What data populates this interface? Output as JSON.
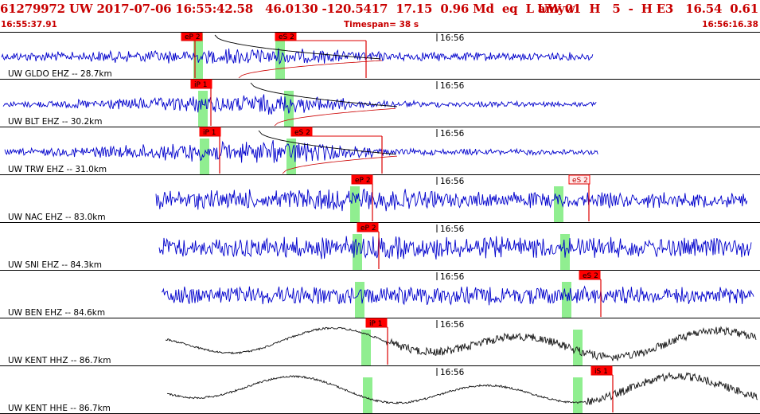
{
  "header": {
    "left": "61279972 UW 2017-07-06 16:55:42.58   46.0130 -120.5417  17.15  0.96 Md  eq  L amyw",
    "right": "UW 01  H   5  -  H E3   16.54  0.61"
  },
  "subheader": {
    "start_time": "16:55:37.91",
    "timespan": "Timespan=  38 s",
    "end_time": "16:56:16.38"
  },
  "colors": {
    "header_text": "#c80000",
    "trace_blue": "#0000cc",
    "trace_black": "#111111",
    "pick_box": "#ff0000",
    "pick_line": "#dd0000",
    "window_band": "#90ee90",
    "panel_border": "#000000"
  },
  "traces": [
    {
      "label": "UW GLDO EHZ -- 28.7km",
      "tick": "16:56",
      "color": "blue",
      "style": "noise",
      "picks": [
        {
          "label": "eP 2",
          "style": "filled"
        },
        {
          "label": "eS 2",
          "style": "filled"
        }
      ]
    },
    {
      "label": "UW BLT EHZ -- 30.2km",
      "tick": "16:56",
      "color": "blue",
      "style": "noise",
      "picks": [
        {
          "label": "iP 1",
          "style": "filled"
        }
      ]
    },
    {
      "label": "UW TRW EHZ -- 31.0km",
      "tick": "16:56",
      "color": "blue",
      "style": "noise",
      "picks": [
        {
          "label": "iP 1",
          "style": "filled"
        },
        {
          "label": "eS 2",
          "style": "filled"
        }
      ]
    },
    {
      "label": "UW NAC EHZ -- 83.0km",
      "tick": "16:56",
      "color": "blue",
      "style": "noise",
      "picks": [
        {
          "label": "eP 2",
          "style": "filled"
        },
        {
          "label": "eS 2",
          "style": "outline"
        }
      ]
    },
    {
      "label": "UW SNI EHZ -- 84.3km",
      "tick": "16:56",
      "color": "blue",
      "style": "noise",
      "picks": [
        {
          "label": "eP 2",
          "style": "filled"
        }
      ]
    },
    {
      "label": "UW BEN EHZ -- 84.6km",
      "tick": "16:56",
      "color": "blue",
      "style": "noise",
      "picks": [
        {
          "label": "eS 2",
          "style": "filled"
        }
      ]
    },
    {
      "label": "UW KENT HHZ -- 86.7km",
      "tick": "16:56",
      "color": "black",
      "style": "wave",
      "picks": [
        {
          "label": "iP 1",
          "style": "filled"
        }
      ]
    },
    {
      "label": "UW KENT HHE -- 86.7km",
      "tick": "16:56",
      "color": "black",
      "style": "wave",
      "picks": [
        {
          "label": "iS 1",
          "style": "filled"
        }
      ]
    }
  ]
}
